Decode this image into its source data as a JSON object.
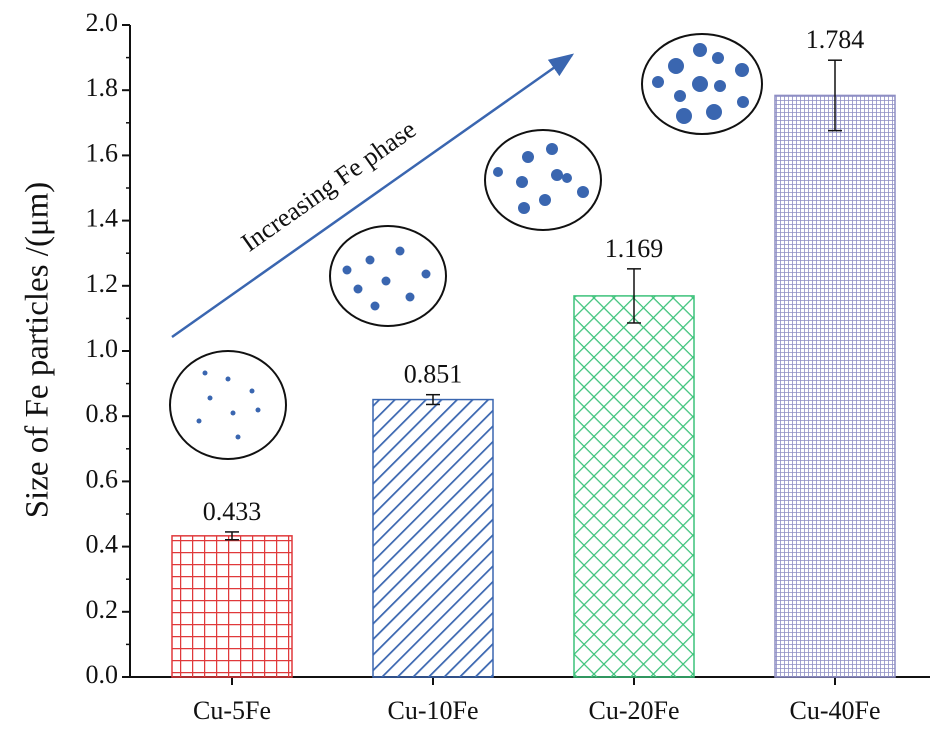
{
  "chart_data": {
    "type": "bar",
    "y_label": "Size of Fe particles /(μm)",
    "annotation": "Increasing Fe phase",
    "categories": [
      "Cu-5Fe",
      "Cu-10Fe",
      "Cu-20Fe",
      "Cu-40Fe"
    ],
    "values": [
      0.433,
      0.851,
      1.169,
      1.784
    ],
    "errors": [
      0.012,
      0.015,
      0.083,
      0.108
    ],
    "colors": [
      "#e0393b",
      "#3a66b0",
      "#3cc27a",
      "#8e8ec4"
    ],
    "ylim": [
      0,
      2.0
    ],
    "yticks": [
      {
        "value": 0,
        "label": "0.0"
      },
      {
        "value": 0.2,
        "label": "0.2"
      },
      {
        "value": 0.4,
        "label": "0.4"
      },
      {
        "value": 0.6,
        "label": "0.6"
      },
      {
        "value": 0.8,
        "label": "0.8"
      },
      {
        "value": 1.0,
        "label": "1.0"
      },
      {
        "value": 1.2,
        "label": "1.2"
      },
      {
        "value": 1.4,
        "label": "1.4"
      },
      {
        "value": 1.6,
        "label": "1.6"
      },
      {
        "value": 1.8,
        "label": "1.8"
      },
      {
        "value": 2.0,
        "label": "2.0"
      }
    ]
  }
}
